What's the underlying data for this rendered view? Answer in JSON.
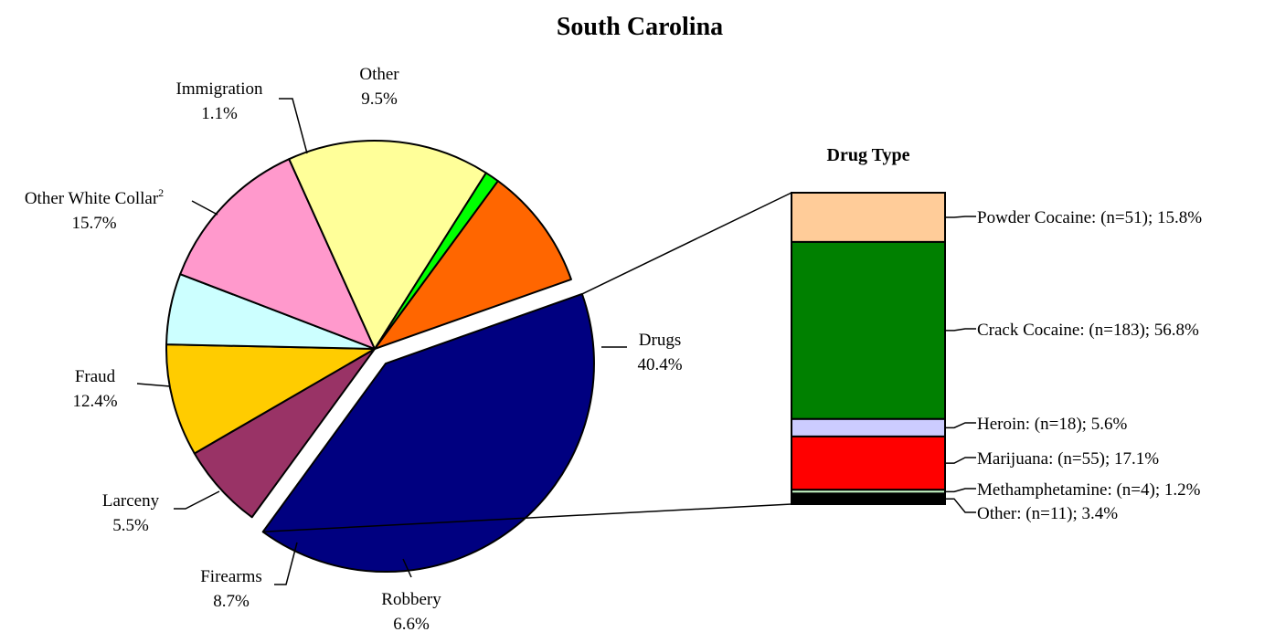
{
  "chart_data": [
    {
      "type": "pie",
      "title": "South Carolina",
      "slices": [
        {
          "label": "Drugs",
          "value": 40.4,
          "value_label": "40.4%",
          "color": "#000080",
          "exploded": true
        },
        {
          "label": "Robbery",
          "value": 6.6,
          "value_label": "6.6%",
          "color": "#993366"
        },
        {
          "label": "Firearms",
          "value": 8.7,
          "value_label": "8.7%",
          "color": "#FFCC00"
        },
        {
          "label": "Larceny",
          "value": 5.5,
          "value_label": "5.5%",
          "color": "#CCFFFF"
        },
        {
          "label": "Fraud",
          "value": 12.4,
          "value_label": "12.4%",
          "color": "#FF99CC"
        },
        {
          "label": "Other White Collar",
          "label_sup": "2",
          "value": 15.7,
          "value_label": "15.7%",
          "color": "#FFFF99"
        },
        {
          "label": "Immigration",
          "value": 1.1,
          "value_label": "1.1%",
          "color": "#00FF00"
        },
        {
          "label": "Other",
          "value": 9.5,
          "value_label": "9.5%",
          "color": "#FF6600"
        }
      ]
    },
    {
      "type": "bar",
      "stacked": true,
      "title": "Drug Type",
      "segments": [
        {
          "label": "Powder Cocaine: (n=51); 15.8%",
          "n": 51,
          "value": 15.8,
          "color": "#FFCC99"
        },
        {
          "label": "Crack Cocaine: (n=183); 56.8%",
          "n": 183,
          "value": 56.8,
          "color": "#008000"
        },
        {
          "label": "Heroin: (n=18); 5.6%",
          "n": 18,
          "value": 5.6,
          "color": "#CCCCFF"
        },
        {
          "label": "Marijuana: (n=55); 17.1%",
          "n": 55,
          "value": 17.1,
          "color": "#FF0000"
        },
        {
          "label": "Methamphetamine: (n=4); 1.2%",
          "n": 4,
          "value": 1.2,
          "color": "#CCFFCC"
        },
        {
          "label": "Other: (n=11); 3.4%",
          "n": 11,
          "value": 3.4,
          "color": "#000000"
        }
      ]
    }
  ]
}
